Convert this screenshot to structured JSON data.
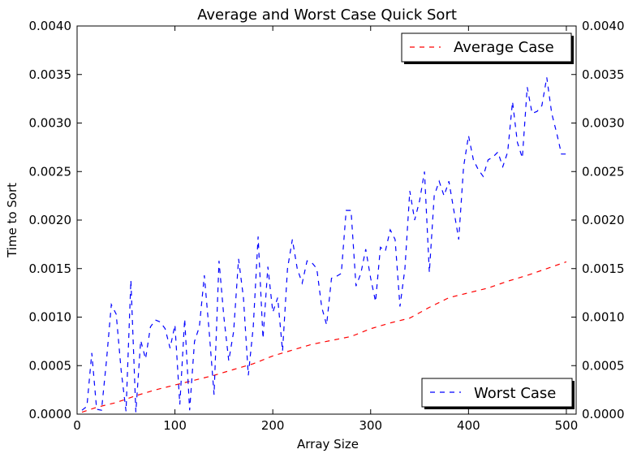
{
  "chart_data": {
    "type": "line",
    "title": "Average and Worst Case Quick Sort",
    "xlabel": "Array Size",
    "ylabel": "Time to Sort",
    "xlim": [
      0,
      510
    ],
    "ylim": [
      0,
      0.004
    ],
    "xticks": [
      0,
      100,
      200,
      300,
      400,
      500
    ],
    "yticks": [
      "0.0000",
      "0.0005",
      "0.0010",
      "0.0015",
      "0.0020",
      "0.0025",
      "0.0030",
      "0.0035",
      "0.0040"
    ],
    "ytick_values": [
      0,
      0.0005,
      0.001,
      0.0015,
      0.002,
      0.0025,
      0.003,
      0.0035,
      0.004
    ],
    "secondary_y_axis": true,
    "grid": false,
    "series": [
      {
        "name": "Average Case",
        "color": "#ff0000",
        "style": "dashed",
        "legend_position": "top-right",
        "x": [
          5,
          20,
          40,
          60,
          80,
          100,
          120,
          140,
          160,
          180,
          200,
          220,
          240,
          260,
          280,
          300,
          320,
          340,
          360,
          380,
          400,
          420,
          440,
          460,
          480,
          500
        ],
        "y": [
          2e-05,
          7e-05,
          0.00012,
          0.00019,
          0.00025,
          0.0003,
          0.00035,
          0.0004,
          0.00046,
          0.00052,
          0.0006,
          0.00066,
          0.00072,
          0.00076,
          0.0008,
          0.00088,
          0.00094,
          0.00099,
          0.0011,
          0.0012,
          0.00125,
          0.0013,
          0.00137,
          0.00143,
          0.0015,
          0.00157
        ]
      },
      {
        "name": "Worst Case",
        "color": "#0000ff",
        "style": "dashed",
        "legend_position": "bottom-right",
        "x": [
          5,
          10,
          15,
          20,
          25,
          30,
          35,
          40,
          45,
          50,
          55,
          60,
          65,
          70,
          75,
          80,
          85,
          90,
          95,
          100,
          105,
          110,
          115,
          120,
          125,
          130,
          135,
          140,
          145,
          150,
          155,
          160,
          165,
          170,
          175,
          180,
          185,
          190,
          195,
          200,
          205,
          210,
          215,
          220,
          225,
          230,
          235,
          240,
          245,
          250,
          255,
          260,
          265,
          270,
          275,
          280,
          285,
          290,
          295,
          300,
          305,
          310,
          315,
          320,
          325,
          330,
          335,
          340,
          345,
          350,
          355,
          360,
          365,
          370,
          375,
          380,
          385,
          390,
          395,
          400,
          405,
          410,
          415,
          420,
          425,
          430,
          435,
          440,
          445,
          450,
          455,
          460,
          465,
          470,
          475,
          480,
          485,
          490,
          495,
          500
        ],
        "y": [
          4e-05,
          8e-05,
          0.00063,
          5e-05,
          4e-05,
          0.00055,
          0.00113,
          0.00103,
          0.00045,
          3e-05,
          0.00138,
          2e-05,
          0.00076,
          0.00057,
          0.0009,
          0.00097,
          0.00095,
          0.00088,
          0.00068,
          0.00092,
          0.0001,
          0.00098,
          4e-05,
          0.00075,
          0.0009,
          0.00143,
          0.00085,
          0.0002,
          0.00158,
          0.001,
          0.00055,
          0.00085,
          0.0016,
          0.0012,
          0.0004,
          0.0009,
          0.00183,
          0.00078,
          0.00152,
          0.00105,
          0.0012,
          0.00065,
          0.0015,
          0.0018,
          0.0015,
          0.00135,
          0.00158,
          0.00156,
          0.0015,
          0.0011,
          0.00092,
          0.0014,
          0.00142,
          0.00145,
          0.0021,
          0.0021,
          0.00132,
          0.00145,
          0.0017,
          0.0014,
          0.00116,
          0.00172,
          0.00168,
          0.0019,
          0.0018,
          0.00111,
          0.0015,
          0.0023,
          0.002,
          0.0022,
          0.0025,
          0.00146,
          0.00225,
          0.0024,
          0.00225,
          0.0024,
          0.0021,
          0.0018,
          0.00255,
          0.00287,
          0.00262,
          0.00252,
          0.00245,
          0.00262,
          0.00265,
          0.0027,
          0.00255,
          0.0027,
          0.00322,
          0.0028,
          0.00264,
          0.00337,
          0.0031,
          0.00312,
          0.00318,
          0.00347,
          0.0031,
          0.0029,
          0.00268,
          0.00268
        ]
      }
    ]
  }
}
